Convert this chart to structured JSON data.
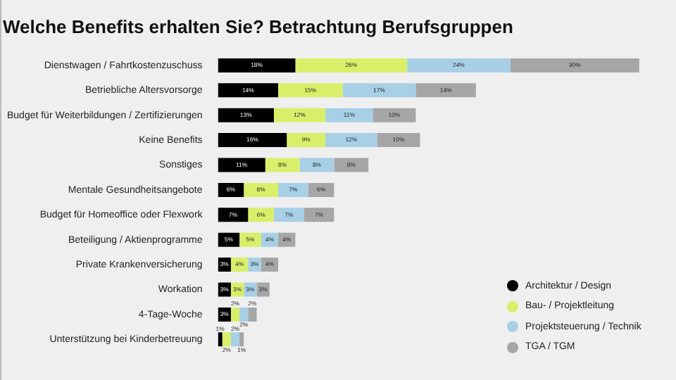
{
  "chart_data": {
    "type": "bar",
    "orientation": "horizontal",
    "stacked": true,
    "title": "Welche Benefits erhalten Sie? Betrachtung Berufsgruppen",
    "categories": [
      "Dienstwagen / Fahrtkostenzuschuss",
      "Betriebliche Altersvorsorge",
      "Budget für Weiterbildungen / Zertifizierungen",
      "Keine Benefits",
      "Sonstiges",
      "Mentale Gesundheitsangebote",
      "Budget für Homeoffice oder Flexwork",
      "Beteiligung / Aktienprogramme",
      "Private Krankenversicherung",
      "Workation",
      "4-Tage-Woche",
      "Unterstützung bei Kinderbetreuung"
    ],
    "series": [
      {
        "name": "Architektur / Design",
        "color": "#000000",
        "values": [
          18,
          14,
          13,
          16,
          11,
          6,
          7,
          5,
          3,
          3,
          3,
          1
        ],
        "value_labels": [
          "18%",
          "14%",
          "13%",
          "16%",
          "11%",
          "6%",
          "7%",
          "5%",
          "3%",
          "3%",
          "3%",
          "1%"
        ]
      },
      {
        "name": "Bau- / Projektleitung",
        "color": "#d9ef6a",
        "values": [
          26,
          15,
          12,
          9,
          8,
          8,
          6,
          5,
          4,
          3,
          2,
          2
        ],
        "value_labels": [
          "26%",
          "15%",
          "12%",
          "9%",
          "8%",
          "8%",
          "6%",
          "5%",
          "4%",
          "3%",
          "2%",
          "2%"
        ]
      },
      {
        "name": "Projektsteuerung / Technik",
        "color": "#a7cfe6",
        "values": [
          24,
          17,
          11,
          12,
          8,
          7,
          7,
          4,
          3,
          3,
          2,
          2
        ],
        "value_labels": [
          "24%",
          "17%",
          "11%",
          "12%",
          "8%",
          "7%",
          "7%",
          "4%",
          "3%",
          "3%",
          "2%",
          "2%"
        ]
      },
      {
        "name": "TGA / TGM",
        "color": "#a6a6a6",
        "values": [
          30,
          14,
          10,
          10,
          8,
          6,
          7,
          4,
          4,
          3,
          2,
          1
        ],
        "value_labels": [
          "30%",
          "14%",
          "10%",
          "10%",
          "8%",
          "6%",
          "7%",
          "4%",
          "4%",
          "3%",
          "2%",
          "1%"
        ]
      }
    ],
    "tick_labels": "y",
    "grid": false,
    "legend": "bottom right"
  }
}
